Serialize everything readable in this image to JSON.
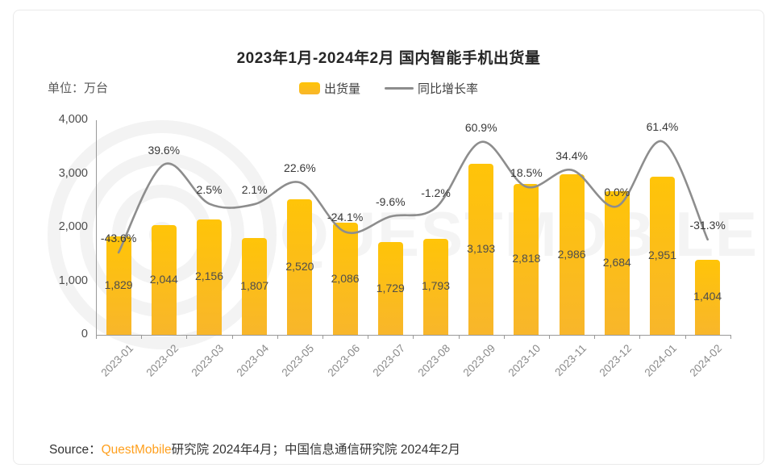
{
  "title": "2023年1月-2024年2月 国内智能手机出货量",
  "unit_label": "单位：万台",
  "legend": {
    "bar_label": "出货量",
    "line_label": "同比增长率"
  },
  "watermark": "QUESTMOBILE",
  "source": {
    "prefix": "Source：",
    "brand": "QuestMobile",
    "suffix": "研究院 2024年4月；中国信息通信研究院 2024年2月"
  },
  "colors": {
    "bar_top": "#FFC408",
    "bar_bottom": "#F8B62B",
    "line": "#8D8D8D",
    "brand_orange": "#FFA01E",
    "axis_gray": "#999999",
    "watermark_gray": "#F4F4F4"
  },
  "chart_data": {
    "type": "bar+line",
    "title": "2023年1月-2024年2月 国内智能手机出货量",
    "ylabel": "万台",
    "categories": [
      "2023-01",
      "2023-02",
      "2023-03",
      "2023-04",
      "2023-05",
      "2023-06",
      "2023-07",
      "2023-08",
      "2023-09",
      "2023-10",
      "2023-11",
      "2023-12",
      "2024-01",
      "2024-02"
    ],
    "series": [
      {
        "name": "出货量",
        "type": "bar",
        "values": [
          1829,
          2044,
          2156,
          1807,
          2520,
          2086,
          1729,
          1793,
          3193,
          2818,
          2986,
          2684,
          2951,
          1404
        ],
        "labels": [
          "1,829",
          "2,044",
          "2,156",
          "1,807",
          "2,520",
          "2,086",
          "1,729",
          "1,793",
          "3,193",
          "2,818",
          "2,986",
          "2,684",
          "2,951",
          "1,404"
        ]
      },
      {
        "name": "同比增长率",
        "type": "line",
        "values": [
          -43.6,
          39.6,
          2.5,
          2.1,
          22.6,
          -24.1,
          -9.6,
          -1.2,
          60.9,
          18.5,
          34.4,
          0.0,
          61.4,
          -31.3
        ],
        "labels": [
          "-43.6%",
          "39.6%",
          "2.5%",
          "2.1%",
          "22.6%",
          "-24.1%",
          "-9.6%",
          "-1.2%",
          "60.9%",
          "18.5%",
          "34.4%",
          "0.0%",
          "61.4%",
          "-31.3%"
        ]
      }
    ],
    "yaxis": {
      "min": 0,
      "max": 4000,
      "ticks": [
        "0",
        "1,000",
        "2,000",
        "3,000",
        "4,000"
      ]
    },
    "legend_position": "top",
    "grid": false
  }
}
